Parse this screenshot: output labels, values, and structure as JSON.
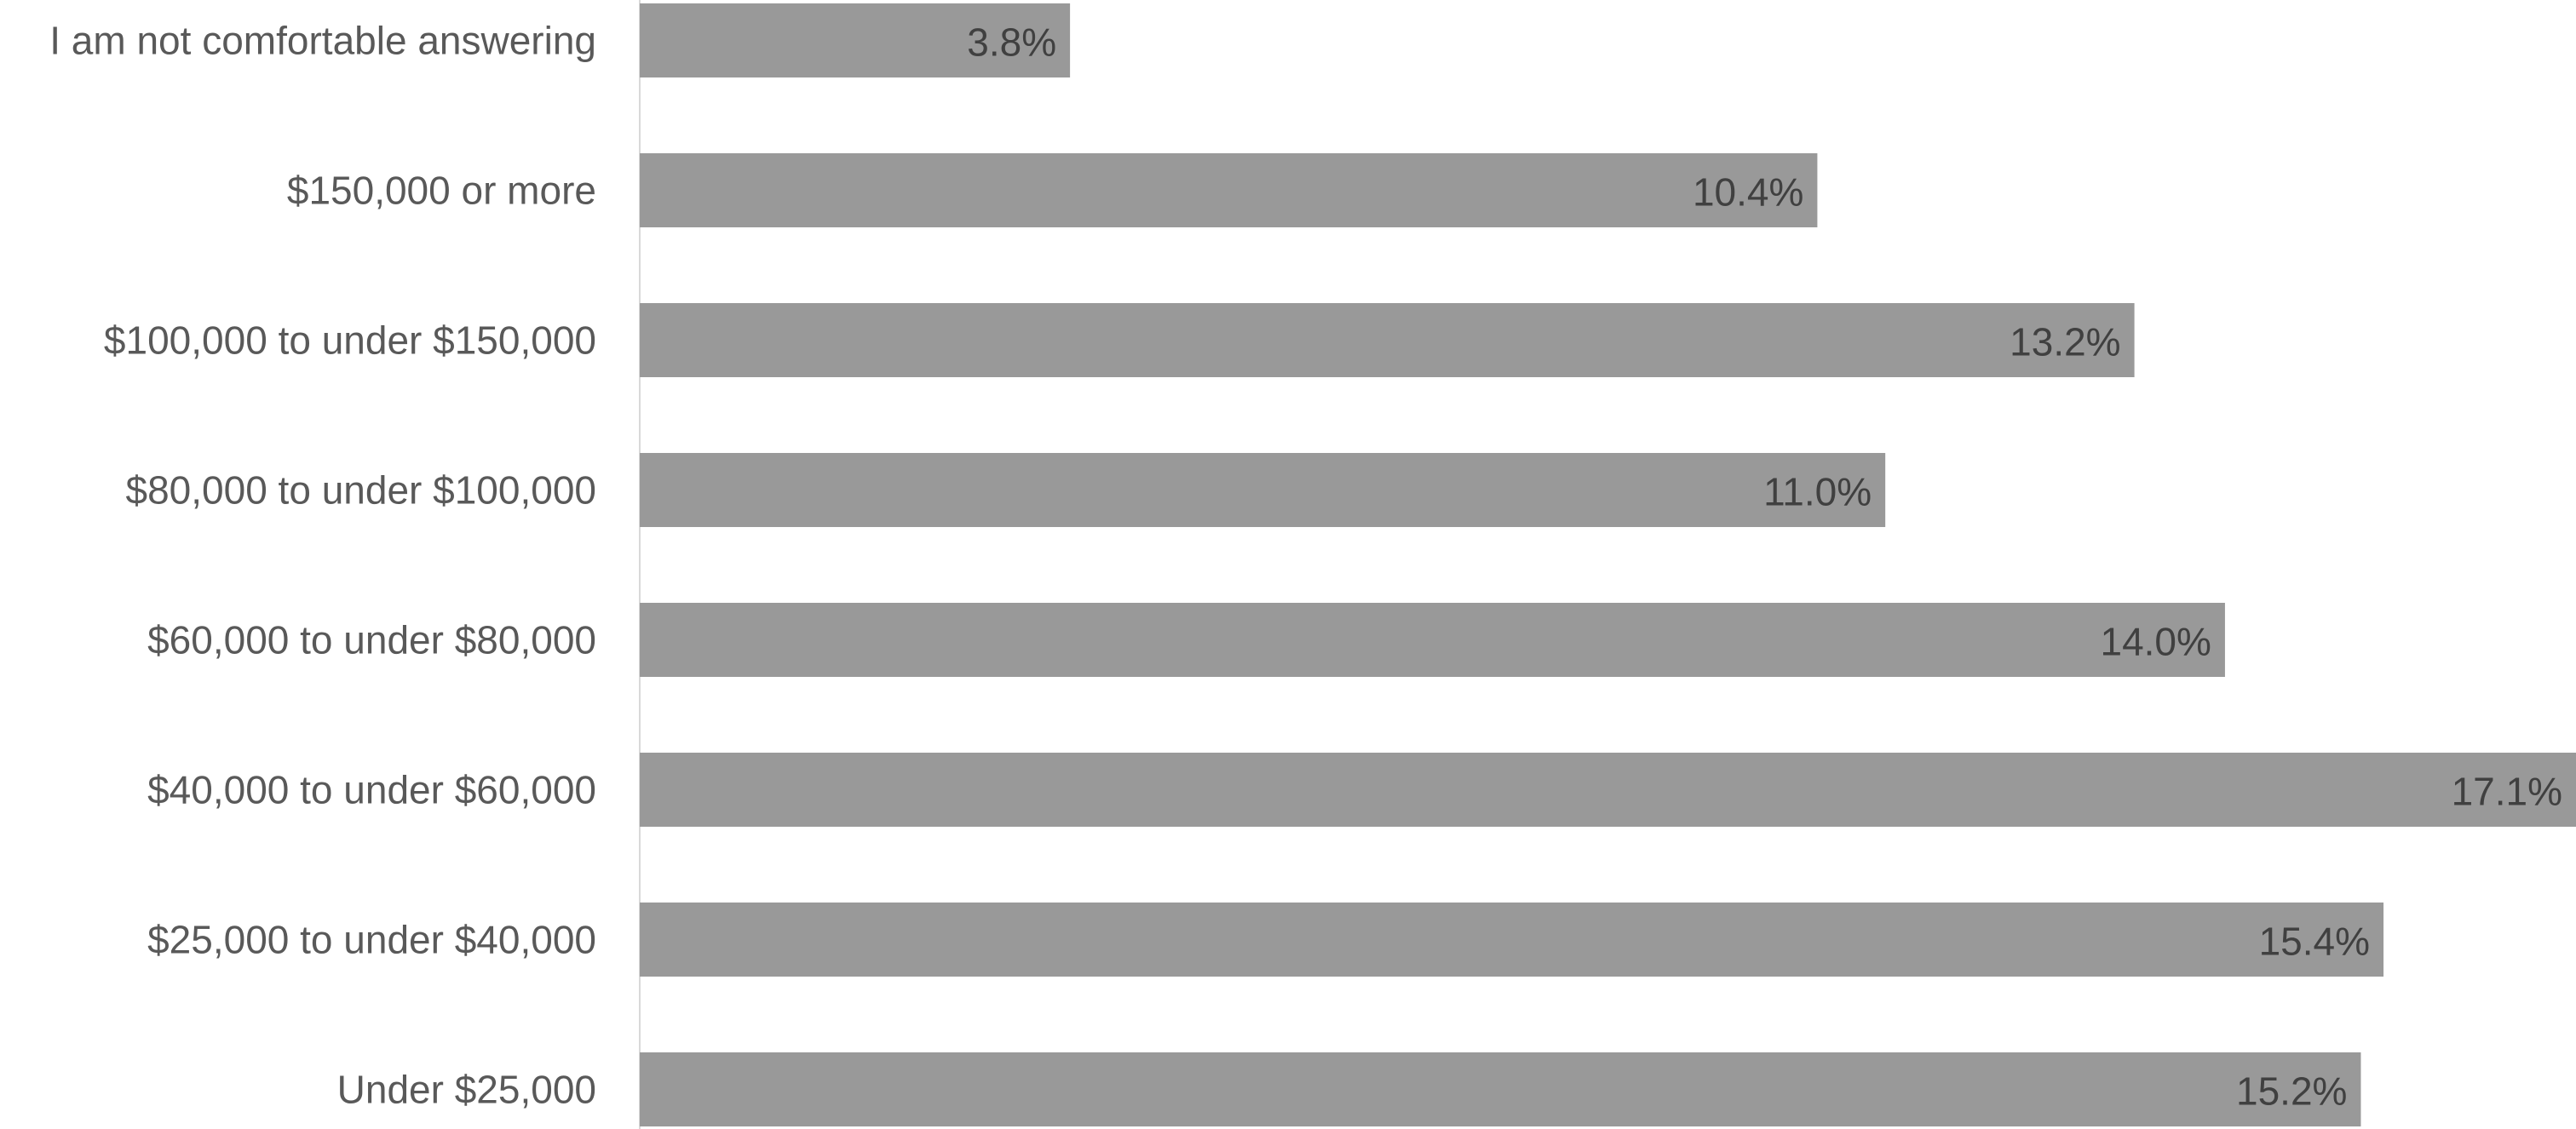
{
  "chart_data": {
    "type": "bar",
    "orientation": "horizontal",
    "categories": [
      "I am not comfortable answering",
      "$150,000 or more",
      "$100,000 to under $150,000",
      "$80,000 to under $100,000",
      "$60,000 to under $80,000",
      "$40,000 to under $60,000",
      "$25,000 to under $40,000",
      "Under $25,000"
    ],
    "values": [
      3.8,
      10.4,
      13.2,
      11.0,
      14.0,
      17.1,
      15.4,
      15.2
    ],
    "data_labels": [
      "3.8%",
      "10.4%",
      "13.2%",
      "11.0%",
      "14.0%",
      "17.1%",
      "15.4%",
      "15.2%"
    ],
    "unit": "%",
    "xlim": [
      0,
      17.1
    ],
    "title": "",
    "xlabel": "",
    "ylabel": "",
    "grid": false,
    "legend": "none",
    "colors": {
      "bar": "#999999",
      "axis": "#d9d9d9",
      "category_text": "#595959",
      "data_label_text": "#404040"
    }
  }
}
